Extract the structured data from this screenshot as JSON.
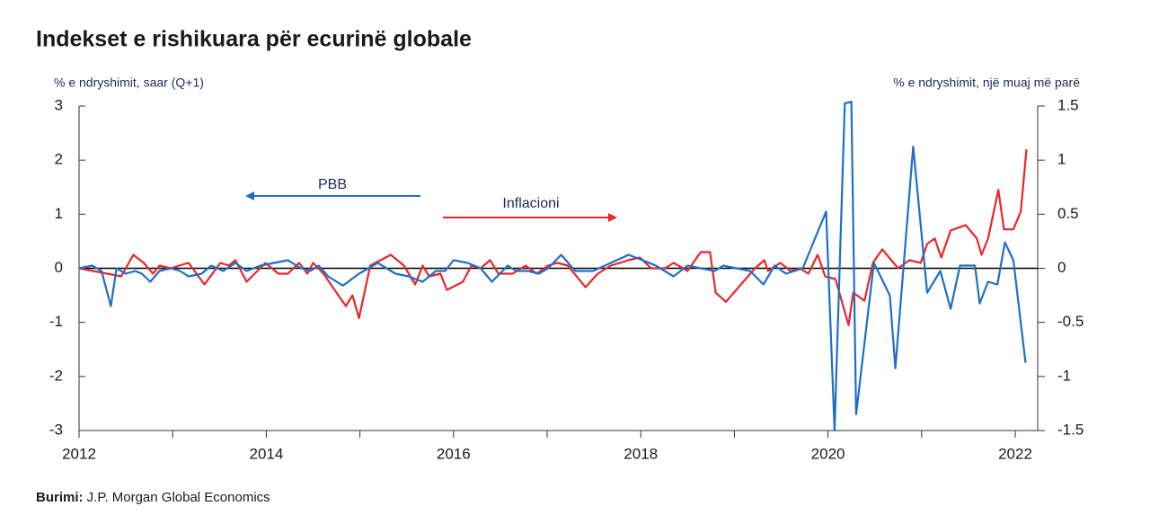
{
  "chart_data": {
    "type": "line",
    "title": "Indekset e rishikuara për ecurinë globale",
    "ylabel": "% e ndryshimit, saar (Q+1)",
    "y2label": "% e ndryshimit, një muaj më parë",
    "source_label": "Burimi:",
    "source": "J.P. Morgan Global Economics",
    "annotations": [
      "PBB",
      "Inflacioni"
    ],
    "xlim": [
      2012,
      2022.24
    ],
    "xticks": [
      2012,
      2014,
      2016,
      2018,
      2020,
      2022
    ],
    "ylim": [
      -3,
      3
    ],
    "yticks": [
      -3,
      -2,
      -1,
      0,
      1,
      2,
      3
    ],
    "y2lim": [
      -1.5,
      1.5
    ],
    "y2ticks": [
      -1.5,
      -1,
      -0.5,
      0,
      0.5,
      1,
      1.5
    ],
    "series": [
      {
        "name": "PBB",
        "color": "#1f6fc5",
        "axis": "y",
        "x": [
          2012.0,
          2012.14,
          2012.24,
          2012.34,
          2012.4,
          2012.5,
          2012.6,
          2012.67,
          2012.76,
          2012.86,
          2012.98,
          2013.08,
          2013.17,
          2013.31,
          2013.41,
          2013.54,
          2013.67,
          2013.79,
          2013.94,
          2014.23,
          2014.37,
          2014.47,
          2014.56,
          2014.66,
          2014.82,
          2014.99,
          2015.19,
          2015.38,
          2015.52,
          2015.67,
          2015.81,
          2015.91,
          2016.0,
          2016.15,
          2016.29,
          2016.41,
          2016.58,
          2016.67,
          2016.8,
          2016.91,
          2017.01,
          2017.15,
          2017.3,
          2017.49,
          2017.68,
          2017.87,
          2018.02,
          2018.16,
          2018.35,
          2018.5,
          2018.64,
          2018.79,
          2018.88,
          2019.02,
          2019.17,
          2019.31,
          2019.43,
          2019.55,
          2019.73,
          2019.98,
          2020.07,
          2020.18,
          2020.25,
          2020.3,
          2020.49,
          2020.66,
          2020.72,
          2020.91,
          2021.06,
          2021.2,
          2021.31,
          2021.41,
          2021.57,
          2021.62,
          2021.71,
          2021.81,
          2021.89,
          2021.98,
          2022.11
        ],
        "values": [
          0,
          0.05,
          -0.05,
          -0.7,
          0,
          -0.1,
          -0.05,
          -0.1,
          -0.25,
          -0.05,
          0,
          -0.05,
          -0.15,
          -0.1,
          0.05,
          -0.05,
          0.1,
          -0.05,
          0.05,
          0.15,
          0,
          -0.05,
          0.05,
          -0.15,
          -0.32,
          -0.1,
          0.1,
          -0.1,
          -0.15,
          -0.25,
          -0.05,
          -0.05,
          0.15,
          0.1,
          0,
          -0.25,
          0.05,
          -0.05,
          -0.05,
          -0.1,
          0,
          0.25,
          -0.05,
          -0.05,
          0.1,
          0.25,
          0.15,
          0.05,
          -0.15,
          0.05,
          0,
          -0.05,
          0.05,
          0,
          -0.05,
          -0.3,
          0.05,
          -0.1,
          0,
          1.05,
          -3.0,
          3.05,
          3.08,
          -2.7,
          0.1,
          -0.5,
          -1.85,
          2.25,
          -0.45,
          -0.05,
          -0.75,
          0.05,
          0.05,
          -0.65,
          -0.25,
          -0.3,
          0.48,
          0.15,
          -1.75
        ]
      },
      {
        "name": "Inflacioni",
        "color": "#e8262b",
        "axis": "y2",
        "x": [
          2012.0,
          2012.45,
          2012.58,
          2012.69,
          2012.79,
          2012.86,
          2012.98,
          2013.07,
          2013.17,
          2013.34,
          2013.51,
          2013.6,
          2013.67,
          2013.79,
          2013.99,
          2014.13,
          2014.23,
          2014.35,
          2014.44,
          2014.5,
          2014.61,
          2014.73,
          2014.85,
          2014.92,
          2014.99,
          2015.11,
          2015.33,
          2015.47,
          2015.59,
          2015.67,
          2015.74,
          2015.86,
          2015.93,
          2016.1,
          2016.19,
          2016.29,
          2016.39,
          2016.48,
          2016.63,
          2016.77,
          2016.89,
          2017.01,
          2017.11,
          2017.22,
          2017.41,
          2017.54,
          2017.68,
          2017.87,
          2017.99,
          2018.11,
          2018.26,
          2018.35,
          2018.5,
          2018.64,
          2018.74,
          2018.8,
          2018.91,
          2019.22,
          2019.32,
          2019.36,
          2019.49,
          2019.6,
          2019.7,
          2019.79,
          2019.89,
          2019.97,
          2020.08,
          2020.22,
          2020.27,
          2020.39,
          2020.48,
          2020.58,
          2020.75,
          2020.87,
          2020.99,
          2021.06,
          2021.14,
          2021.21,
          2021.31,
          2021.47,
          2021.59,
          2021.64,
          2021.71,
          2021.82,
          2021.88,
          2021.98,
          2022.06,
          2022.12
        ],
        "values": [
          0,
          -0.075,
          0.125,
          0.05,
          -0.05,
          0.025,
          0,
          0.025,
          0.05,
          -0.15,
          0.05,
          0.025,
          0.075,
          -0.125,
          0.05,
          -0.05,
          -0.05,
          0.05,
          -0.05,
          0.05,
          -0.05,
          -0.2,
          -0.35,
          -0.25,
          -0.46,
          0.025,
          0.125,
          0.025,
          -0.15,
          0.025,
          -0.075,
          -0.05,
          -0.2,
          -0.125,
          0.025,
          0,
          0.075,
          -0.05,
          -0.05,
          0.025,
          -0.05,
          0.025,
          0.05,
          0.025,
          -0.175,
          -0.05,
          0.025,
          0.075,
          0.1,
          0,
          0,
          0.05,
          -0.025,
          0.15,
          0.15,
          -0.225,
          -0.31,
          0,
          0.075,
          -0.025,
          0.05,
          -0.025,
          0,
          -0.05,
          0.125,
          -0.075,
          -0.1,
          -0.525,
          -0.225,
          -0.3,
          0.05,
          0.175,
          0,
          0.075,
          0.05,
          0.225,
          0.275,
          0.1,
          0.35,
          0.4,
          0.275,
          0.125,
          0.275,
          0.725,
          0.36,
          0.36,
          0.525,
          1.1
        ]
      }
    ]
  }
}
